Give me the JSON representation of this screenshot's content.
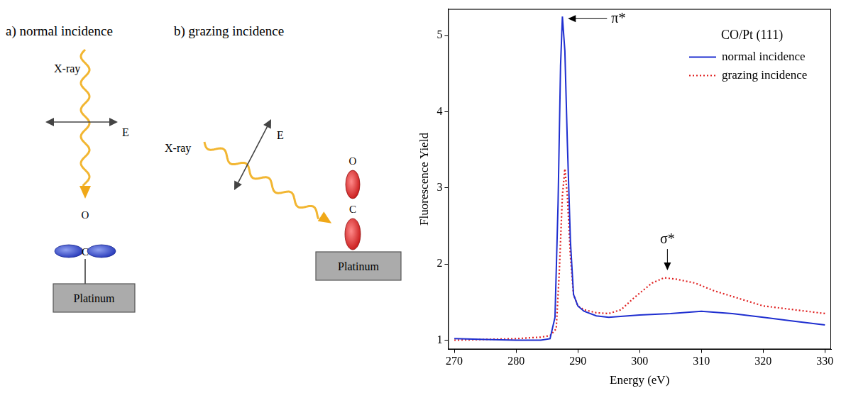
{
  "diagram": {
    "panels": [
      {
        "label": "a) normal incidence",
        "beam": "X-ray",
        "field": "E",
        "atoms": [
          "O",
          "C"
        ],
        "surface": "Platinum"
      },
      {
        "label": "b) grazing incidence",
        "beam": "X-ray",
        "field": "E",
        "atoms": [
          "O",
          "C"
        ],
        "surface": "Platinum"
      }
    ]
  },
  "chart_data": {
    "type": "line",
    "x_label": "Energy (eV)",
    "y_label": "Fluorescence Yield",
    "legend": "upper right",
    "legend_title": "CO/Pt (111)",
    "grid": false,
    "xlim": [
      269,
      331
    ],
    "xticks": [
      270,
      280,
      290,
      300,
      310,
      320,
      330
    ],
    "ylim": [
      0.88,
      5.35
    ],
    "yticks": [
      1,
      2,
      3,
      4,
      5
    ],
    "series": [
      {
        "name": "normal incidence",
        "color": "#1f2fd0",
        "line_style": "solid",
        "x": [
          270,
          275,
          280,
          284,
          285.5,
          286.3,
          286.8,
          287.2,
          287.5,
          287.9,
          288.3,
          288.8,
          289.3,
          290,
          291,
          293,
          295,
          300,
          305,
          310,
          315,
          320,
          325,
          330
        ],
        "values": [
          1.02,
          1.01,
          1.0,
          1.0,
          1.02,
          1.3,
          2.8,
          4.6,
          5.25,
          4.8,
          3.6,
          2.3,
          1.6,
          1.45,
          1.38,
          1.32,
          1.3,
          1.33,
          1.35,
          1.38,
          1.35,
          1.3,
          1.25,
          1.2
        ]
      },
      {
        "name": "grazing incidence",
        "color": "#e02020",
        "line_style": "dotted",
        "x": [
          270,
          275,
          280,
          284,
          285.5,
          286.5,
          287.0,
          287.5,
          287.9,
          288.3,
          288.8,
          289.3,
          290,
          291,
          293,
          295,
          297,
          299,
          302,
          304,
          306,
          309,
          312,
          316,
          320,
          325,
          330
        ],
        "values": [
          1.0,
          1.01,
          1.02,
          1.04,
          1.06,
          1.15,
          1.9,
          2.9,
          3.25,
          2.9,
          2.1,
          1.6,
          1.45,
          1.4,
          1.36,
          1.35,
          1.4,
          1.55,
          1.75,
          1.82,
          1.8,
          1.75,
          1.65,
          1.55,
          1.45,
          1.4,
          1.35
        ]
      }
    ],
    "annotations": [
      {
        "text": "π*",
        "x": 287.6,
        "y": 5.25,
        "arrow": "left"
      },
      {
        "text": "σ*",
        "x": 304.5,
        "y": 1.88,
        "arrow": "down"
      }
    ]
  }
}
